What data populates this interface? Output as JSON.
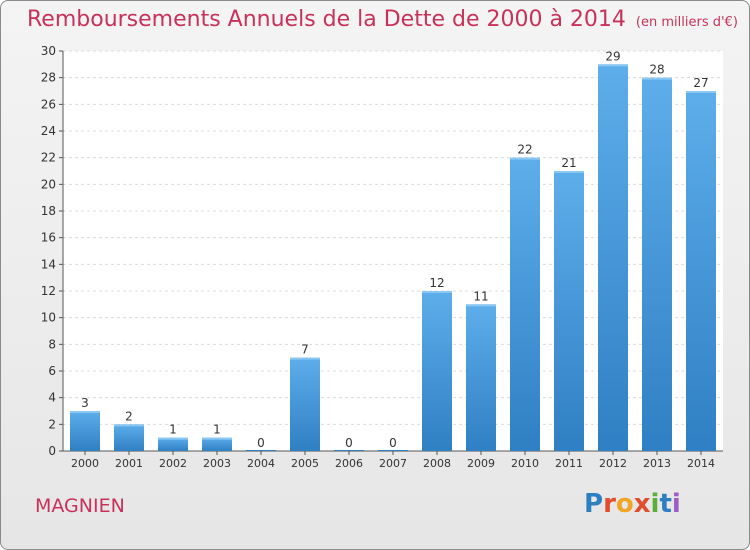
{
  "chart_data": {
    "type": "bar",
    "title": "Remboursements Annuels de la Dette de 2000 à 2014",
    "subtitle": "(en milliers d'€)",
    "categories": [
      "2000",
      "2001",
      "2002",
      "2003",
      "2004",
      "2005",
      "2006",
      "2007",
      "2008",
      "2009",
      "2010",
      "2011",
      "2012",
      "2013",
      "2014"
    ],
    "values": [
      3,
      2,
      1,
      1,
      0,
      7,
      0,
      0,
      12,
      11,
      22,
      21,
      29,
      28,
      27
    ],
    "xlabel": "",
    "ylabel": "",
    "ylim": [
      0,
      30
    ],
    "yticks": [
      0,
      2,
      4,
      6,
      8,
      10,
      12,
      14,
      16,
      18,
      20,
      22,
      24,
      26,
      28,
      30
    ],
    "grid": true,
    "bar_color": "#3d8fd6"
  },
  "place_name": "MAGNIEN",
  "logo": {
    "text": "Proxiti",
    "letters": [
      "P",
      "r",
      "o",
      "x",
      "i",
      "t",
      "i"
    ],
    "colors": [
      "#2c7fc1",
      "#e04e2c",
      "#f0a526",
      "#e04e2c",
      "#5cad3a",
      "#2c7fc1",
      "#a05cc2"
    ]
  }
}
